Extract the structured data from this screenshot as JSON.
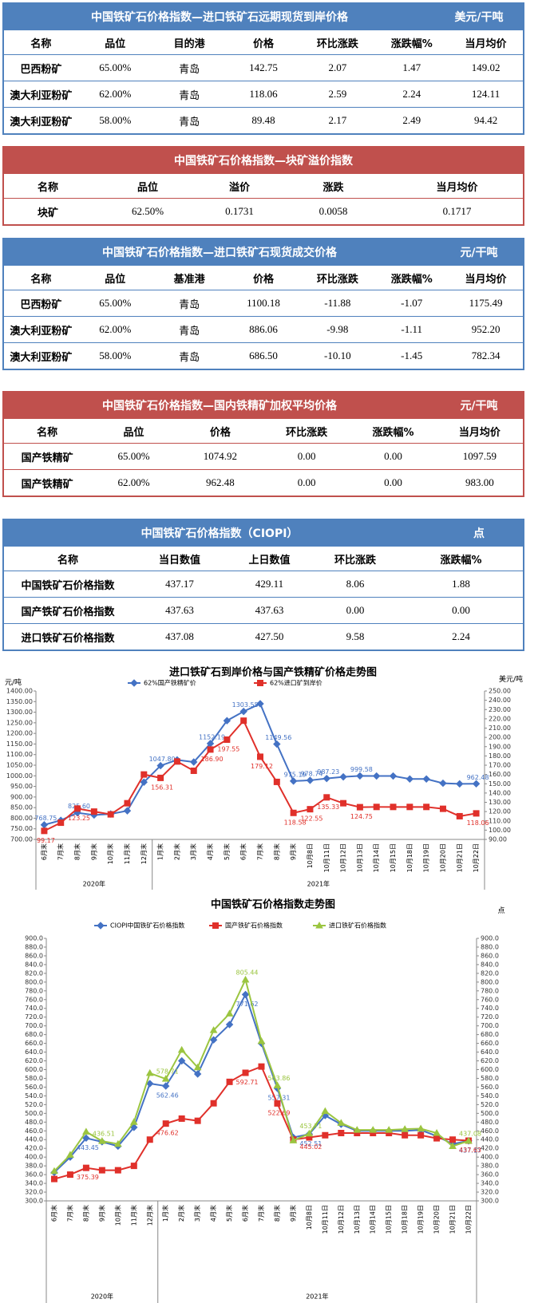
{
  "tables": [
    {
      "title": "中国铁矿石价格指数—进口铁矿石远期现货到岸价格",
      "unit": "美元/干吨",
      "color": "#4f81bd",
      "columns": [
        "名称",
        "品位",
        "目的港",
        "价格",
        "环比涨跌",
        "涨跌幅%",
        "当月均价"
      ],
      "rows": [
        [
          "巴西粉矿",
          "65.00%",
          "青岛",
          "142.75",
          "2.07",
          "1.47",
          "149.02"
        ],
        [
          "澳大利亚粉矿",
          "62.00%",
          "青岛",
          "118.06",
          "2.59",
          "2.24",
          "124.11"
        ],
        [
          "澳大利亚粉矿",
          "58.00%",
          "青岛",
          "89.48",
          "2.17",
          "2.49",
          "94.42"
        ]
      ]
    },
    {
      "title": "中国铁矿石价格指数—块矿溢价指数",
      "color": "#c0504d",
      "columns": [
        "名称",
        "品位",
        "溢价",
        "涨跌",
        "当月均价"
      ],
      "rows": [
        [
          "块矿",
          "62.50%",
          "0.1731",
          "0.0058",
          "0.1717"
        ]
      ]
    },
    {
      "title": "中国铁矿石价格指数—进口铁矿石现货成交价格",
      "unit": "元/干吨",
      "color": "#4f81bd",
      "columns": [
        "名称",
        "品位",
        "基准港",
        "价格",
        "环比涨跌",
        "涨跌幅%",
        "当月均价"
      ],
      "rows": [
        [
          "巴西粉矿",
          "65.00%",
          "青岛",
          "1100.18",
          "-11.88",
          "-1.07",
          "1175.49"
        ],
        [
          "澳大利亚粉矿",
          "62.00%",
          "青岛",
          "886.06",
          "-9.98",
          "-1.11",
          "952.20"
        ],
        [
          "澳大利亚粉矿",
          "58.00%",
          "青岛",
          "686.50",
          "-10.10",
          "-1.45",
          "782.34"
        ]
      ]
    },
    {
      "title": "中国铁矿石价格指数—国内铁精矿加权平均价格",
      "unit": "元/干吨",
      "color": "#c0504d",
      "columns": [
        "名称",
        "品位",
        "价格",
        "环比涨跌",
        "涨跌幅%",
        "当月均价"
      ],
      "rows": [
        [
          "国产铁精矿",
          "65.00%",
          "1074.92",
          "0.00",
          "0.00",
          "1097.59"
        ],
        [
          "国产铁精矿",
          "62.00%",
          "962.48",
          "0.00",
          "0.00",
          "983.00"
        ]
      ]
    },
    {
      "title": "中国铁矿石价格指数（CIOPI）",
      "unit": "点",
      "color": "#4f81bd",
      "columns": [
        "名称",
        "当日数值",
        "上日数值",
        "环比涨跌",
        "涨跌幅%"
      ],
      "rows": [
        [
          "中国铁矿石价格指数",
          "437.17",
          "429.11",
          "8.06",
          "1.88"
        ],
        [
          "国产铁矿石价格指数",
          "437.63",
          "437.63",
          "0.00",
          "0.00"
        ],
        [
          "进口铁矿石价格指数",
          "437.08",
          "427.50",
          "9.58",
          "2.24"
        ]
      ]
    }
  ],
  "chart_data": [
    {
      "type": "line",
      "title": "进口铁矿石到岸价格与国产铁精矿价格走势图",
      "y_label": "元/吨",
      "y2_label": "美元/吨",
      "categories": [
        "6月末",
        "7月末",
        "8月末",
        "9月末",
        "10月末",
        "11月末",
        "12月末",
        "1月末",
        "2月末",
        "3月末",
        "4月末",
        "5月末",
        "6月末",
        "7月末",
        "8月末",
        "9月末",
        "10月8日",
        "10月11日",
        "10月12日",
        "10月13日",
        "10月14日",
        "10月15日",
        "10月18日",
        "10月19日",
        "10月20日",
        "10月21日",
        "10月22日"
      ],
      "x_groups": [
        "2020年",
        "2021年"
      ],
      "series": [
        {
          "name": "62%国产铁精矿价",
          "color": "#4472c4",
          "marker": "diamond",
          "values": [
            768.75,
            790,
            825.6,
            815,
            820,
            835,
            970,
            1047.8,
            1075,
            1065,
            1152.19,
            1260,
            1303.55,
            1340,
            1149.56,
            975.19,
            978.74,
            987.23,
            995,
            999.58,
            999,
            999,
            985,
            985,
            965,
            962,
            962.48
          ],
          "value_labels": [
            "768.75",
            null,
            "825.60",
            null,
            null,
            null,
            null,
            "1047.80",
            null,
            null,
            "1152.19",
            null,
            "1303.55",
            null,
            "1149.56",
            "975.19",
            "978.74",
            "987.23",
            null,
            "999.58",
            null,
            null,
            null,
            null,
            null,
            null,
            "962.48"
          ]
        },
        {
          "name": "62%进口矿到岸价",
          "color": "#e0302a",
          "marker": "square",
          "axis": "y2",
          "values": [
            99.17,
            108,
            123.25,
            120,
            117,
            129,
            160,
            156.31,
            174,
            164,
            186.9,
            197.55,
            218,
            179.12,
            152,
            118.58,
            122.55,
            135.33,
            129,
            124.75,
            125,
            125,
            125,
            125,
            123,
            115,
            118.06
          ],
          "value_labels": [
            "99.17",
            null,
            "123.25",
            null,
            null,
            null,
            null,
            "156.31",
            null,
            null,
            "186.90",
            "197.55",
            null,
            "179.12",
            null,
            "118.58",
            "122.55",
            "135.33",
            null,
            "124.75",
            null,
            null,
            null,
            null,
            null,
            null,
            "118.06"
          ]
        }
      ],
      "ylim": [
        700,
        1400
      ],
      "yticks": [
        {
          "value": 700,
          "label": "700.00"
        },
        {
          "value": 750,
          "label": "750.00"
        },
        {
          "value": 800,
          "label": "800.00"
        },
        {
          "value": 850,
          "label": "850.00"
        },
        {
          "value": 900,
          "label": "900.00"
        },
        {
          "value": 950,
          "label": "950.00"
        },
        {
          "value": 1000,
          "label": "1000.00"
        },
        {
          "value": 1050,
          "label": "1050.00"
        },
        {
          "value": 1100,
          "label": "1100.00"
        },
        {
          "value": 1150,
          "label": "1150.00"
        },
        {
          "value": 1200,
          "label": "1200.00"
        },
        {
          "value": 1250,
          "label": "1250.00"
        },
        {
          "value": 1300,
          "label": "1300.00"
        },
        {
          "value": 1350,
          "label": "1350.00"
        },
        {
          "value": 1400,
          "label": "1400.00"
        }
      ],
      "y2lim": [
        90,
        250
      ],
      "y2ticks": [
        {
          "value": 90,
          "label": "90.00"
        },
        {
          "value": 100,
          "label": "100.00"
        },
        {
          "value": 110,
          "label": "110.00"
        },
        {
          "value": 120,
          "label": "120.00"
        },
        {
          "value": 130,
          "label": "130.00"
        },
        {
          "value": 140,
          "label": "140.00"
        },
        {
          "value": 150,
          "label": "150.00"
        },
        {
          "value": 160,
          "label": "160.00"
        },
        {
          "value": 170,
          "label": "170.00"
        },
        {
          "value": 180,
          "label": "180.00"
        },
        {
          "value": 190,
          "label": "190.00"
        },
        {
          "value": 200,
          "label": "200.00"
        },
        {
          "value": 210,
          "label": "210.00"
        },
        {
          "value": 220,
          "label": "220.00"
        },
        {
          "value": 230,
          "label": "230.00"
        },
        {
          "value": 240,
          "label": "240.00"
        },
        {
          "value": 250,
          "label": "250.00"
        }
      ]
    },
    {
      "type": "line",
      "title": "中国铁矿石价格指数走势图",
      "y2_label": "点",
      "categories": [
        "6月末",
        "7月末",
        "8月末",
        "9月末",
        "10月末",
        "11月末",
        "12月末",
        "1月末",
        "2月末",
        "3月末",
        "4月末",
        "5月末",
        "6月末",
        "7月末",
        "8月末",
        "9月末",
        "10月8日",
        "10月11日",
        "10月12日",
        "10月13日",
        "10月14日",
        "10月15日",
        "10月18日",
        "10月19日",
        "10月20日",
        "10月21日",
        "10月22日"
      ],
      "x_groups": [
        "2020年",
        "2021年"
      ],
      "series": [
        {
          "name": "CIOPI中国铁矿石价格指数",
          "color": "#4472c4",
          "marker": "diamond",
          "values": [
            365,
            400,
            443.45,
            435,
            425,
            468,
            568,
            562.46,
            620,
            590,
            668,
            703,
            771.62,
            660,
            557.31,
            445,
            452.51,
            495,
            475,
            460,
            460,
            460,
            460,
            462,
            448,
            430,
            437.17
          ],
          "value_labels": [
            null,
            null,
            "443.45",
            null,
            null,
            null,
            null,
            "562.46",
            null,
            null,
            null,
            null,
            "771.62",
            null,
            "557.31",
            null,
            "452.51",
            null,
            null,
            null,
            null,
            null,
            null,
            null,
            null,
            null,
            "437.17"
          ]
        },
        {
          "name": "国产铁矿石价格指数",
          "color": "#e0302a",
          "marker": "square",
          "values": [
            350,
            360,
            375.39,
            370,
            370,
            380,
            440,
            476.62,
            488,
            483,
            523,
            572,
            592.71,
            607,
            522.69,
            440,
            445.02,
            450,
            455,
            455,
            455,
            455,
            450,
            450,
            443,
            440,
            437.63
          ],
          "value_labels": [
            null,
            null,
            "375.39",
            null,
            null,
            null,
            null,
            "476.62",
            null,
            null,
            null,
            null,
            "592.71",
            null,
            "522.69",
            null,
            "445.02",
            null,
            null,
            null,
            null,
            null,
            null,
            null,
            null,
            null,
            "437.63"
          ]
        },
        {
          "name": "进口铁矿石价格指数",
          "color": "#9bc540",
          "marker": "triangle",
          "values": [
            368,
            405,
            458,
            436.51,
            430,
            480,
            592,
            578.71,
            645,
            605,
            690,
            728,
            805.44,
            665,
            563.86,
            438,
            453.71,
            505,
            478,
            462,
            462,
            462,
            464,
            465,
            455,
            425,
            437.08
          ],
          "value_labels": [
            null,
            null,
            null,
            "436.51",
            null,
            null,
            null,
            "578.71",
            null,
            null,
            null,
            null,
            "805.44",
            null,
            "563.86",
            null,
            "453.71",
            null,
            null,
            null,
            null,
            null,
            null,
            null,
            null,
            null,
            "437.08"
          ]
        }
      ],
      "ylim": [
        300,
        900
      ],
      "yticks": [
        {
          "value": 300,
          "label": "300.0"
        },
        {
          "value": 320,
          "label": "320.0"
        },
        {
          "value": 340,
          "label": "340.0"
        },
        {
          "value": 360,
          "label": "360.0"
        },
        {
          "value": 380,
          "label": "380.0"
        },
        {
          "value": 400,
          "label": "400.0"
        },
        {
          "value": 420,
          "label": "420.0"
        },
        {
          "value": 440,
          "label": "440.0"
        },
        {
          "value": 460,
          "label": "460.0"
        },
        {
          "value": 480,
          "label": "480.0"
        },
        {
          "value": 500,
          "label": "500.0"
        },
        {
          "value": 520,
          "label": "520.0"
        },
        {
          "value": 540,
          "label": "540.0"
        },
        {
          "value": 560,
          "label": "560.0"
        },
        {
          "value": 580,
          "label": "580.0"
        },
        {
          "value": 600,
          "label": "600.0"
        },
        {
          "value": 620,
          "label": "620.0"
        },
        {
          "value": 640,
          "label": "640.0"
        },
        {
          "value": 660,
          "label": "660.0"
        },
        {
          "value": 680,
          "label": "680.0"
        },
        {
          "value": 700,
          "label": "700.0"
        },
        {
          "value": 720,
          "label": "720.0"
        },
        {
          "value": 740,
          "label": "740.0"
        },
        {
          "value": 760,
          "label": "760.0"
        },
        {
          "value": 780,
          "label": "780.0"
        },
        {
          "value": 800,
          "label": "800.0"
        },
        {
          "value": 820,
          "label": "820.0"
        },
        {
          "value": 840,
          "label": "840.0"
        },
        {
          "value": 860,
          "label": "860.0"
        },
        {
          "value": 880,
          "label": "880.0"
        },
        {
          "value": 900,
          "label": "900.0"
        }
      ],
      "y2lim": [
        300,
        900
      ],
      "y2ticks": [
        {
          "value": 300,
          "label": "300.0"
        },
        {
          "value": 320,
          "label": "320.0"
        },
        {
          "value": 340,
          "label": "340.0"
        },
        {
          "value": 360,
          "label": "360.0"
        },
        {
          "value": 380,
          "label": "380.0"
        },
        {
          "value": 400,
          "label": "400.0"
        },
        {
          "value": 420,
          "label": "420.0"
        },
        {
          "value": 440,
          "label": "440.0"
        },
        {
          "value": 460,
          "label": "460.0"
        },
        {
          "value": 480,
          "label": "480.0"
        },
        {
          "value": 500,
          "label": "500.0"
        },
        {
          "value": 520,
          "label": "520.0"
        },
        {
          "value": 540,
          "label": "540.0"
        },
        {
          "value": 560,
          "label": "560.0"
        },
        {
          "value": 580,
          "label": "580.0"
        },
        {
          "value": 600,
          "label": "600.0"
        },
        {
          "value": 620,
          "label": "620.0"
        },
        {
          "value": 640,
          "label": "640.0"
        },
        {
          "value": 660,
          "label": "660.0"
        },
        {
          "value": 680,
          "label": "680.0"
        },
        {
          "value": 700,
          "label": "700.0"
        },
        {
          "value": 720,
          "label": "720.0"
        },
        {
          "value": 740,
          "label": "740.0"
        },
        {
          "value": 760,
          "label": "760.0"
        },
        {
          "value": 780,
          "label": "780.0"
        },
        {
          "value": 800,
          "label": "800.0"
        },
        {
          "value": 820,
          "label": "820.0"
        },
        {
          "value": 840,
          "label": "840.0"
        },
        {
          "value": 860,
          "label": "860.0"
        },
        {
          "value": 880,
          "label": "880.0"
        },
        {
          "value": 900,
          "label": "900.0"
        }
      ]
    }
  ]
}
